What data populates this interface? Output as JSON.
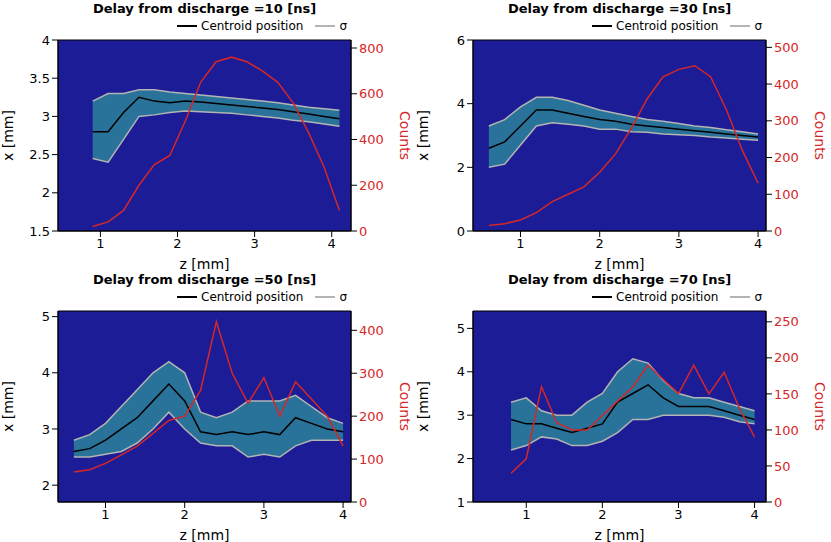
{
  "chart_data": [
    {
      "type": "line",
      "title": "Delay from discharge =10 [ns]",
      "x_label": "z [mm]",
      "y_label": "x [mm]",
      "y2_label": "Counts",
      "x": [
        0.9,
        1.1,
        1.3,
        1.5,
        1.7,
        1.9,
        2.1,
        2.3,
        2.5,
        2.7,
        2.9,
        3.1,
        3.3,
        3.5,
        3.7,
        3.9,
        4.1
      ],
      "xlim": [
        0.45,
        4.25
      ],
      "xticks": [
        1,
        2,
        3,
        4
      ],
      "ylim": [
        1.5,
        4
      ],
      "yticks": [
        1.5,
        2,
        2.5,
        3,
        3.5,
        4
      ],
      "y2lim": [
        0,
        835
      ],
      "y2ticks": [
        0,
        200,
        400,
        600,
        800
      ],
      "legend": "top right",
      "grid": false,
      "series": [
        {
          "name": "Centroid position",
          "color": "#000000",
          "values": [
            2.8,
            2.8,
            3.05,
            3.25,
            3.2,
            3.18,
            3.2,
            3.19,
            3.17,
            3.15,
            3.13,
            3.11,
            3.09,
            3.06,
            3.03,
            3.0,
            2.97
          ]
        },
        {
          "name": "σ",
          "color": "#b4b4b4",
          "values": [
            3.2,
            3.3,
            3.3,
            3.35,
            3.35,
            3.32,
            3.3,
            3.28,
            3.26,
            3.24,
            3.22,
            3.2,
            3.18,
            3.15,
            3.12,
            3.1,
            3.08
          ],
          "lower": [
            2.45,
            2.4,
            2.7,
            3.0,
            3.02,
            3.05,
            3.07,
            3.06,
            3.05,
            3.04,
            3.02,
            3.0,
            2.98,
            2.95,
            2.93,
            2.9,
            2.87
          ]
        },
        {
          "color": "#d62728",
          "axis": "y2",
          "values": [
            20,
            40,
            90,
            200,
            290,
            330,
            480,
            650,
            740,
            760,
            740,
            700,
            650,
            560,
            430,
            280,
            90
          ]
        }
      ]
    },
    {
      "type": "line",
      "title": "Delay from discharge =30 [ns]",
      "x_label": "z [mm]",
      "y_label": "x [mm]",
      "y2_label": "Counts",
      "x": [
        0.6,
        0.8,
        1.0,
        1.2,
        1.4,
        1.6,
        1.8,
        2.0,
        2.2,
        2.4,
        2.6,
        2.8,
        3.0,
        3.2,
        3.4,
        3.6,
        3.8,
        4.0
      ],
      "xlim": [
        0.4,
        4.1
      ],
      "xticks": [
        1,
        2,
        3,
        4
      ],
      "ylim": [
        0,
        6
      ],
      "yticks": [
        0,
        2,
        4,
        6
      ],
      "y2lim": [
        0,
        520
      ],
      "y2ticks": [
        0,
        100,
        200,
        300,
        400,
        500
      ],
      "legend": "top right",
      "grid": false,
      "series": [
        {
          "name": "Centroid position",
          "color": "#000000",
          "values": [
            2.6,
            2.8,
            3.3,
            3.8,
            3.8,
            3.7,
            3.6,
            3.5,
            3.45,
            3.35,
            3.3,
            3.25,
            3.2,
            3.15,
            3.1,
            3.05,
            3.0,
            2.95
          ]
        },
        {
          "name": "σ",
          "color": "#b4b4b4",
          "values": [
            3.3,
            3.5,
            3.9,
            4.2,
            4.2,
            4.1,
            3.95,
            3.8,
            3.7,
            3.6,
            3.5,
            3.45,
            3.38,
            3.3,
            3.25,
            3.18,
            3.12,
            3.05
          ],
          "lower": [
            2.0,
            2.1,
            2.7,
            3.3,
            3.4,
            3.35,
            3.3,
            3.2,
            3.2,
            3.12,
            3.1,
            3.05,
            3.02,
            3.0,
            2.95,
            2.92,
            2.88,
            2.85
          ]
        },
        {
          "color": "#d62728",
          "axis": "y2",
          "values": [
            15,
            20,
            30,
            50,
            80,
            100,
            120,
            160,
            210,
            280,
            360,
            420,
            440,
            450,
            420,
            330,
            220,
            130
          ]
        }
      ]
    },
    {
      "type": "line",
      "title": "Delay from discharge =50 [ns]",
      "x_label": "z [mm]",
      "y_label": "x [mm]",
      "y2_label": "Counts",
      "x": [
        0.6,
        0.8,
        1.0,
        1.2,
        1.4,
        1.6,
        1.8,
        2.0,
        2.2,
        2.4,
        2.6,
        2.8,
        3.0,
        3.2,
        3.4,
        3.6,
        3.8,
        4.0
      ],
      "xlim": [
        0.4,
        4.1
      ],
      "xticks": [
        1,
        2,
        3,
        4
      ],
      "ylim": [
        1.7,
        5.1
      ],
      "yticks": [
        2,
        3,
        4,
        5
      ],
      "y2lim": [
        0,
        445
      ],
      "y2ticks": [
        0,
        100,
        200,
        300,
        400
      ],
      "legend": "top right",
      "grid": false,
      "series": [
        {
          "name": "Centroid position",
          "color": "#000000",
          "values": [
            2.6,
            2.65,
            2.8,
            3.0,
            3.2,
            3.5,
            3.8,
            3.5,
            2.95,
            2.9,
            2.95,
            2.9,
            2.95,
            2.9,
            3.2,
            3.1,
            3.0,
            2.95
          ]
        },
        {
          "name": "σ",
          "color": "#b4b4b4",
          "values": [
            2.8,
            2.9,
            3.1,
            3.4,
            3.7,
            4.0,
            4.2,
            4.0,
            3.3,
            3.2,
            3.3,
            3.5,
            3.5,
            3.5,
            3.6,
            3.4,
            3.2,
            3.1
          ],
          "lower": [
            2.5,
            2.5,
            2.55,
            2.6,
            2.75,
            3.0,
            3.3,
            3.0,
            2.75,
            2.7,
            2.7,
            2.5,
            2.55,
            2.5,
            2.7,
            2.8,
            2.8,
            2.8
          ]
        },
        {
          "color": "#d62728",
          "axis": "y2",
          "values": [
            70,
            75,
            90,
            110,
            130,
            160,
            190,
            200,
            260,
            420,
            300,
            230,
            290,
            200,
            280,
            240,
            200,
            130
          ]
        }
      ]
    },
    {
      "type": "line",
      "title": "Delay from discharge =70 [ns]",
      "x_label": "z [mm]",
      "y_label": "x [mm]",
      "y2_label": "Counts",
      "x": [
        0.8,
        1.0,
        1.2,
        1.4,
        1.6,
        1.8,
        2.0,
        2.2,
        2.4,
        2.6,
        2.8,
        3.0,
        3.2,
        3.4,
        3.6,
        3.8,
        4.0
      ],
      "xlim": [
        0.3,
        4.15
      ],
      "xticks": [
        1,
        2,
        3,
        4
      ],
      "ylim": [
        1,
        5.4
      ],
      "yticks": [
        1,
        2,
        3,
        4,
        5
      ],
      "y2lim": [
        0,
        265
      ],
      "y2ticks": [
        0,
        50,
        100,
        150,
        200,
        250
      ],
      "legend": "top right",
      "grid": false,
      "series": [
        {
          "name": "Centroid position",
          "color": "#000000",
          "values": [
            2.9,
            2.8,
            2.8,
            2.7,
            2.6,
            2.7,
            2.8,
            3.3,
            3.5,
            3.7,
            3.4,
            3.2,
            3.2,
            3.2,
            3.1,
            3.0,
            2.9
          ]
        },
        {
          "name": "σ",
          "color": "#b4b4b4",
          "values": [
            3.3,
            3.4,
            3.1,
            3.0,
            3.0,
            3.3,
            3.5,
            4.0,
            4.3,
            4.2,
            3.8,
            3.5,
            3.4,
            3.4,
            3.3,
            3.2,
            3.1
          ],
          "lower": [
            2.2,
            2.3,
            2.5,
            2.45,
            2.3,
            2.3,
            2.4,
            2.6,
            2.9,
            2.9,
            3.0,
            3.0,
            3.0,
            3.0,
            2.95,
            2.85,
            2.8
          ]
        },
        {
          "color": "#d62728",
          "axis": "y2",
          "values": [
            40,
            60,
            160,
            110,
            100,
            100,
            120,
            140,
            160,
            190,
            170,
            150,
            190,
            150,
            180,
            130,
            90
          ]
        }
      ]
    }
  ]
}
